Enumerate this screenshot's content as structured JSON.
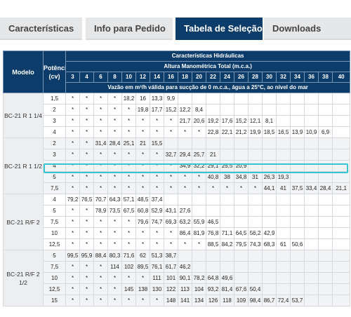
{
  "tabs": [
    "Características",
    "Info para Pedido",
    "Tabela de Seleção",
    "Downloads"
  ],
  "table": {
    "header_model": "Modelo",
    "header_power": "Potência (cv)",
    "header_hydraulic": "Características Hidráulicas",
    "header_height": "Altura Manométrica Total (m.c.a.)",
    "heights": [
      "3",
      "4",
      "6",
      "8",
      "10",
      "12",
      "14",
      "16",
      "18",
      "20",
      "22",
      "24",
      "26",
      "28",
      "30",
      "32",
      "34",
      "36",
      "38",
      "40"
    ],
    "flow_note": "Vazão em m³/h válida para sucção de 0 m.c.a., água a 25°C, ao nível do mar",
    "groups": [
      {
        "model": "BC-21 R 1 1/4",
        "rows": [
          {
            "power": "1,5",
            "values": [
              "*",
              "*",
              "*",
              "*",
              "18,2",
              "16",
              "13,3",
              "9,9",
              "",
              "",
              "",
              "",
              "",
              "",
              "",
              "",
              "",
              "",
              "",
              ""
            ]
          },
          {
            "power": "2",
            "values": [
              "*",
              "*",
              "*",
              "*",
              "*",
              "19,8",
              "17,7",
              "15,2",
              "12,2",
              "8,4",
              "",
              "",
              "",
              "",
              "",
              "",
              "",
              "",
              "",
              ""
            ]
          },
          {
            "power": "3",
            "values": [
              "*",
              "*",
              "*",
              "*",
              "*",
              "*",
              "*",
              "*",
              "21,7",
              "20,6",
              "19,2",
              "17,6",
              "15,2",
              "12,1",
              "8,1",
              "",
              "",
              "",
              "",
              ""
            ]
          },
          {
            "power": "4",
            "values": [
              "*",
              "*",
              "*",
              "*",
              "*",
              "*",
              "*",
              "*",
              "*",
              "*",
              "22,8",
              "22,1",
              "21,2",
              "19,9",
              "18,5",
              "16,5",
              "13,9",
              "10,9",
              "6,9",
              ""
            ]
          }
        ]
      },
      {
        "model": "BC-21 R 1 1/2",
        "rows": [
          {
            "power": "2",
            "values": [
              "*",
              "*",
              "31,4",
              "28,4",
              "25,1",
              "21",
              "15,5",
              "",
              "",
              "",
              "",
              "",
              "",
              "",
              "",
              "",
              "",
              "",
              "",
              ""
            ]
          },
          {
            "power": "3",
            "values": [
              "*",
              "*",
              "*",
              "*",
              "*",
              "*",
              "*",
              "32,7",
              "29,4",
              "25,7",
              "21",
              "",
              "",
              "",
              "",
              "",
              "",
              "",
              "",
              ""
            ]
          },
          {
            "power": "4",
            "values": [
              "*",
              "*",
              "*",
              "*",
              "*",
              "*",
              "*",
              "*",
              "34,9",
              "32,2",
              "29,1",
              "25,5",
              "20,9",
              "",
              "",
              "",
              "",
              "",
              "",
              ""
            ]
          },
          {
            "power": "5",
            "values": [
              "*",
              "*",
              "*",
              "*",
              "*",
              "*",
              "*",
              "*",
              "*",
              "*",
              "40,8",
              "38",
              "34,8",
              "31",
              "26,3",
              "19,3",
              "",
              "",
              "",
              ""
            ]
          },
          {
            "power": "7,5",
            "values": [
              "*",
              "*",
              "*",
              "*",
              "*",
              "*",
              "*",
              "*",
              "*",
              "*",
              "*",
              "*",
              "*",
              "*",
              "44,1",
              "41",
              "37,5",
              "33,4",
              "28,4",
              "21,1"
            ]
          }
        ]
      },
      {
        "model": "BC-21 R/F 2",
        "rows": [
          {
            "power": "4",
            "values": [
              "79,2",
              "76,5",
              "70,7",
              "64,3",
              "57,1",
              "48,5",
              "37,4",
              "",
              "",
              "",
              "",
              "",
              "",
              "",
              "",
              "",
              "",
              "",
              "",
              ""
            ]
          },
          {
            "power": "5",
            "values": [
              "*",
              "*",
              "78,9",
              "73,5",
              "67,5",
              "60,8",
              "52,9",
              "43,1",
              "27,6",
              "",
              "",
              "",
              "",
              "",
              "",
              "",
              "",
              "",
              "",
              ""
            ]
          },
          {
            "power": "7,5",
            "values": [
              "*",
              "*",
              "*",
              "*",
              "*",
              "79,6",
              "74,7",
              "69,3",
              "63,2",
              "55,9",
              "46,5",
              "",
              "",
              "",
              "",
              "",
              "",
              "",
              "",
              ""
            ]
          },
          {
            "power": "10",
            "values": [
              "*",
              "*",
              "*",
              "*",
              "*",
              "*",
              "*",
              "*",
              "86,4",
              "81,9",
              "76,8",
              "71,1",
              "64,5",
              "56,2",
              "42,9",
              "",
              "",
              "",
              "",
              ""
            ]
          },
          {
            "power": "12,5",
            "values": [
              "*",
              "*",
              "*",
              "*",
              "*",
              "*",
              "*",
              "*",
              "*",
              "*",
              "88,5",
              "84,2",
              "79,5",
              "74,3",
              "68,3",
              "61",
              "50,6",
              "",
              "",
              ""
            ]
          }
        ]
      },
      {
        "model": "BC-21 R/F 2 1/2",
        "rows": [
          {
            "power": "5",
            "values": [
              "99,5",
              "95,9",
              "88,4",
              "80,3",
              "71,6",
              "62",
              "51,3",
              "38,7",
              "",
              "",
              "",
              "",
              "",
              "",
              "",
              "",
              "",
              "",
              "",
              ""
            ]
          },
          {
            "power": "7,5",
            "values": [
              "*",
              "*",
              "*",
              "114",
              "102",
              "89,5",
              "76,1",
              "61,7",
              "46,2",
              "",
              "",
              "",
              "",
              "",
              "",
              "",
              "",
              "",
              "",
              ""
            ]
          },
          {
            "power": "10",
            "values": [
              "*",
              "*",
              "*",
              "*",
              "*",
              "*",
              "111",
              "101",
              "90,1",
              "78,2",
              "64,8",
              "49,6",
              "",
              "",
              "",
              "",
              "",
              "",
              "",
              ""
            ]
          },
          {
            "power": "12,5",
            "values": [
              "*",
              "*",
              "*",
              "*",
              "145",
              "138",
              "130",
              "122",
              "113",
              "104",
              "93,2",
              "81,4",
              "67,6",
              "50,4",
              "",
              "",
              "",
              "",
              "",
              ""
            ]
          },
          {
            "power": "15",
            "values": [
              "*",
              "*",
              "*",
              "*",
              "*",
              "*",
              "*",
              "148",
              "141",
              "134",
              "126",
              "118",
              "109",
              "98,4",
              "86,7",
              "72,4",
              "53,7",
              "",
              "",
              ""
            ]
          }
        ]
      }
    ]
  }
}
